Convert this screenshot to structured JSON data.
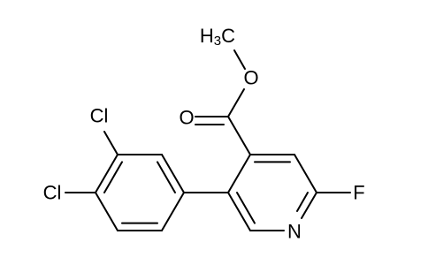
{
  "molecule": {
    "methyl": [
      "H",
      "3",
      "C"
    ],
    "atoms": [
      {
        "label": "O"
      },
      {
        "label": "O"
      },
      {
        "label": "Cl"
      },
      {
        "label": "Cl"
      },
      {
        "label": "N"
      },
      {
        "label": "F"
      }
    ]
  }
}
